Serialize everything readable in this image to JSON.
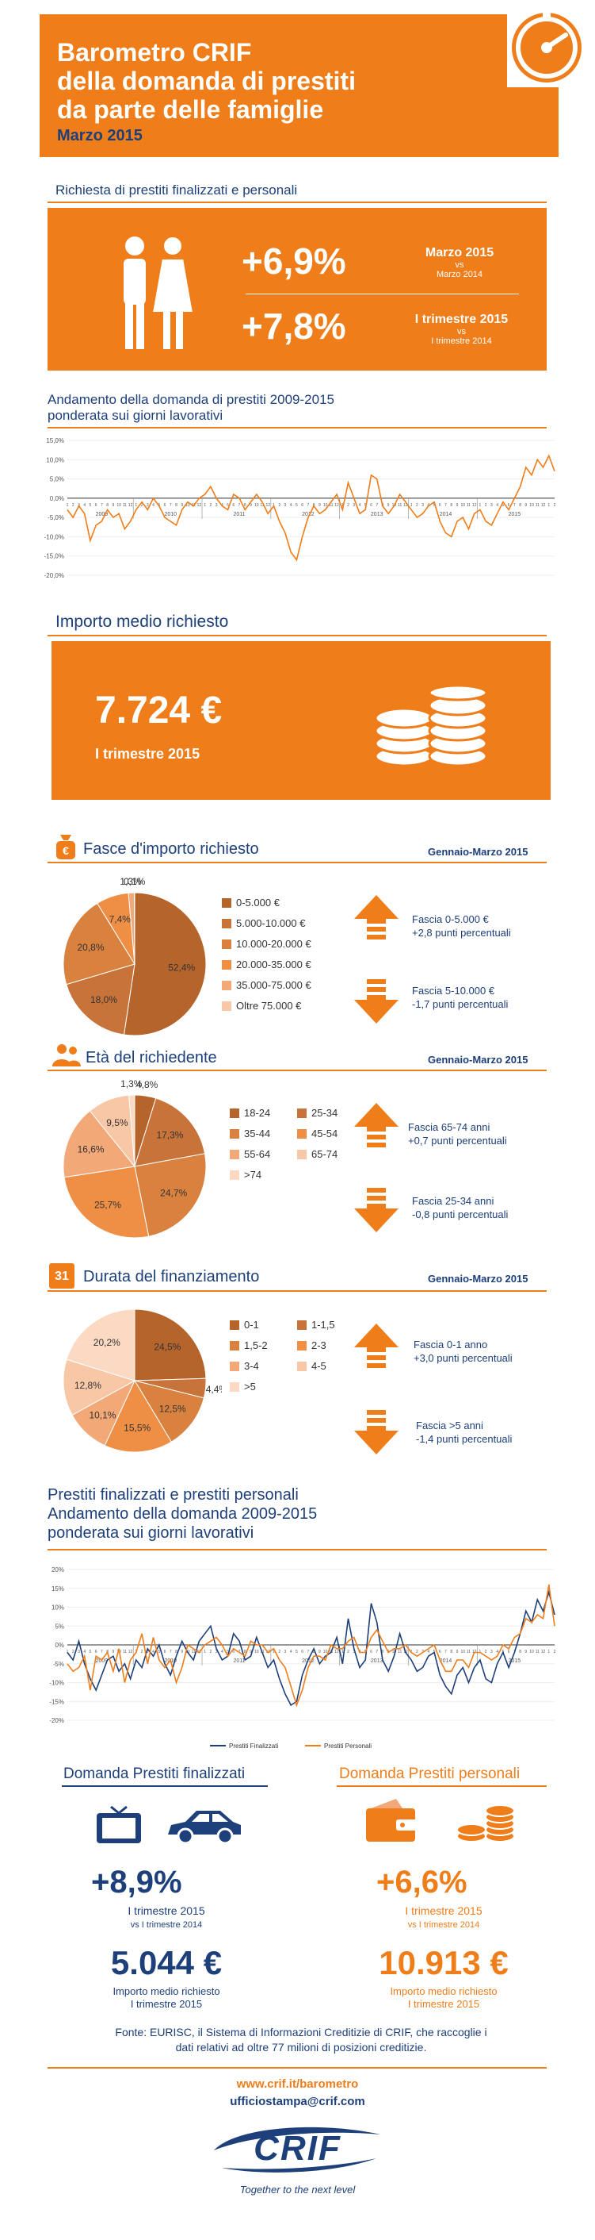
{
  "header": {
    "title_lines": [
      "Barometro CRIF",
      "della domanda di prestiti",
      "da parte delle famiglie"
    ],
    "date": "Marzo 2015"
  },
  "section_richiesta": {
    "title": "Richiesta di prestiti finalizzati e personali",
    "stat1_value": "+6,9%",
    "stat1_label": "Marzo 2015",
    "stat1_vs": "vs",
    "stat1_ref": "Marzo 2014",
    "stat2_value": "+7,8%",
    "stat2_label": "I trimestre 2015",
    "stat2_vs": "vs",
    "stat2_ref": "I trimestre 2014"
  },
  "section_andamento": {
    "title_line1": "Andamento della domanda di prestiti 2009-2015",
    "title_line2": "ponderata sui giorni lavorativi"
  },
  "section_importo": {
    "title": "Importo medio richiesto",
    "value": "7.724 €",
    "period": "I trimestre 2015"
  },
  "section_fasce": {
    "title": "Fasce d'importo richiesto",
    "period": "Gennaio-Marzo 2015",
    "note_up_line1": "Fascia 0-5.000 €",
    "note_up_line2": "+2,8 punti percentuali",
    "note_down_line1": "Fascia 5-10.000 €",
    "note_down_line2": "-1,7 punti percentuali"
  },
  "section_eta": {
    "title": "Età del richiedente",
    "period": "Gennaio-Marzo 2015",
    "note_up_line1": "Fascia 65-74 anni",
    "note_up_line2": "+0,7 punti percentuali",
    "note_down_line1": "Fascia 25-34 anni",
    "note_down_line2": "-0,8 punti percentuali"
  },
  "section_durata": {
    "title": "Durata del finanziamento",
    "calendar_number": "31",
    "period": "Gennaio-Marzo 2015",
    "note_up_line1": "Fascia 0-1 anno",
    "note_up_line2": "+3,0 punti percentuali",
    "note_down_line1": "Fascia >5 anni",
    "note_down_line2": "-1,4 punti percentuali"
  },
  "section_finalizzati": {
    "title_line1": "Prestiti finalizzati e prestiti personali",
    "title_line2": "Andamento della domanda 2009-2015",
    "title_line3": "ponderata sui giorni lavorativi"
  },
  "bottom": {
    "left_title": "Domanda Prestiti finalizzati",
    "left_value": "+8,9%",
    "left_period": "I trimestre 2015",
    "left_vs": "vs I trimestre 2014",
    "left_amount": "5.044 €",
    "left_amount_label1": "Importo medio richiesto",
    "left_amount_label2": "I trimestre 2015",
    "right_title": "Domanda Prestiti personali",
    "right_value": "+6,6%",
    "right_period": "I trimestre 2015",
    "right_vs": "vs I trimestre 2014",
    "right_amount": "10.913 €",
    "right_amount_label1": "Importo medio richiesto",
    "right_amount_label2": "I trimestre 2015"
  },
  "footer": {
    "source_line1": "Fonte: EURISC, il Sistema di Informazioni Creditizie di CRIF, che raccoglie i",
    "source_line2": "dati relativi ad oltre 77 milioni di posizioni creditizie.",
    "url": "www.crif.it/barometro",
    "email": "ufficiostampa@crif.com",
    "logo_text": "CRIF",
    "tagline": "Together to the next level"
  },
  "colors": {
    "orange": "#ef7d1a",
    "navy": "#1d3f7a",
    "pie": [
      "#b5652b",
      "#c8733a",
      "#d9823f",
      "#ee8f45",
      "#f3a877",
      "#f8c7a6",
      "#fbd9c2",
      "#f6b48a"
    ]
  },
  "chart_data": [
    {
      "type": "line",
      "title": "Andamento della domanda di prestiti 2009-2015",
      "subtitle": "ponderata sui giorni lavorativi",
      "ylim": [
        -20,
        15
      ],
      "yticks": [
        "15,0%",
        "10,0%",
        "5,0%",
        "0,0%",
        "-5,0%",
        "-10,0%",
        "-15,0%",
        "-20,0%"
      ],
      "year_labels": [
        "2009",
        "2010",
        "2011",
        "2012",
        "2013",
        "2014",
        "2015"
      ],
      "x_month_labels": [
        "1",
        "2",
        "3",
        "4",
        "5",
        "6",
        "7",
        "8",
        "9",
        "10",
        "11",
        "12"
      ],
      "series": [
        {
          "values": [
            -3,
            -5,
            -2,
            -4,
            -11,
            -7,
            -6,
            -3,
            -5,
            -4,
            -8,
            -6,
            -3,
            -1,
            -3,
            0,
            -2,
            -5,
            -6,
            -7,
            -3,
            -1,
            -2,
            0,
            1,
            3,
            0,
            -2,
            -3,
            1,
            0,
            -3,
            -1,
            1,
            -1,
            -4,
            -2,
            -6,
            -9,
            -14,
            -16,
            -10,
            -5,
            -2,
            -4,
            -3,
            -1,
            1,
            -3,
            4,
            0,
            -4,
            -3,
            6,
            5,
            -2,
            -4,
            -2,
            1,
            -1,
            -3,
            -5,
            -4,
            -2,
            -1,
            -6,
            -9,
            -10,
            -6,
            -5,
            -8,
            -4,
            -3,
            -6,
            -7,
            -4,
            -1,
            -3,
            0,
            3,
            8,
            6,
            10,
            8,
            11,
            7
          ]
        }
      ]
    },
    {
      "type": "pie",
      "title": "Fasce d'importo richiesto",
      "categories": [
        "0-5.000 €",
        "5.000-10.000 €",
        "10.000-20.000 €",
        "20.000-35.000 €",
        "35.000-75.000 €",
        "Oltre 75.000 €"
      ],
      "values": [
        52.4,
        18.0,
        20.8,
        7.4,
        1.3,
        0.1
      ],
      "labels": [
        "52,4%",
        "18,0%",
        "20,8%",
        "7,4%",
        "1,3%",
        "0,1%"
      ]
    },
    {
      "type": "pie",
      "title": "Età del richiedente",
      "categories": [
        "18-24",
        "25-34",
        "35-44",
        "45-54",
        "55-64",
        "65-74",
        ">74"
      ],
      "values": [
        4.8,
        17.3,
        24.7,
        25.7,
        16.6,
        9.5,
        1.3
      ],
      "labels": [
        "4,8%",
        "17,3%",
        "24,7%",
        "25,7%",
        "16,6%",
        "9,5%",
        "1,3%"
      ]
    },
    {
      "type": "pie",
      "title": "Durata del finanziamento",
      "categories": [
        "0-1",
        "1-1,5",
        "1,5-2",
        "2-3",
        "3-4",
        "4-5",
        ">5"
      ],
      "values": [
        24.5,
        4.4,
        12.5,
        15.5,
        10.1,
        12.8,
        20.2
      ],
      "labels": [
        "24,5%",
        "4,4%",
        "12,5%",
        "15,5%",
        "10,1%",
        "12,8%",
        "20,2%"
      ]
    },
    {
      "type": "line",
      "title": "Prestiti finalizzati e prestiti personali",
      "subtitle": "Andamento della domanda 2009-2015 ponderata sui giorni lavorativi",
      "ylim": [
        -20,
        20
      ],
      "yticks": [
        "20%",
        "15%",
        "10%",
        "5%",
        "0%",
        "-5%",
        "-10%",
        "-15%",
        "-20%"
      ],
      "year_labels": [
        "2009",
        "2010",
        "2011",
        "2012",
        "2013",
        "2014",
        "2015"
      ],
      "x_month_labels": [
        "1",
        "2",
        "3",
        "4",
        "5",
        "6",
        "7",
        "8",
        "9",
        "10",
        "11",
        "12"
      ],
      "legend": "bottom",
      "series": [
        {
          "name": "Prestiti Finalizzati",
          "values": [
            -2,
            -4,
            1,
            -5,
            -9,
            -12,
            -8,
            -4,
            -3,
            -7,
            -5,
            -9,
            -4,
            -6,
            -1,
            -3,
            0,
            -5,
            -8,
            -3,
            1,
            -2,
            -4,
            1,
            3,
            5,
            -1,
            -4,
            -3,
            3,
            1,
            -4,
            -3,
            2,
            -2,
            -6,
            -4,
            -9,
            -13,
            -16,
            -15,
            -8,
            -4,
            -1,
            -5,
            -3,
            -2,
            2,
            -5,
            7,
            -1,
            -6,
            -4,
            11,
            6,
            -4,
            -7,
            -3,
            3,
            -2,
            -4,
            -7,
            -6,
            -3,
            -2,
            -8,
            -11,
            -13,
            -8,
            -6,
            -10,
            -6,
            -4,
            -9,
            -10,
            -5,
            -2,
            -6,
            -2,
            3,
            9,
            6,
            12,
            9,
            14,
            8
          ]
        },
        {
          "name": "Prestiti Personali",
          "values": [
            -5,
            -7,
            -6,
            -3,
            -12,
            -3,
            -4,
            -2,
            -7,
            -1,
            -10,
            -4,
            -2,
            3,
            -5,
            2,
            -4,
            -6,
            -4,
            -10,
            -6,
            0,
            -1,
            -2,
            0,
            1,
            2,
            0,
            -3,
            -1,
            -2,
            -3,
            1,
            0,
            0,
            -2,
            -1,
            -4,
            -6,
            -11,
            -16,
            -12,
            -6,
            -3,
            -3,
            -4,
            0,
            -1,
            -1,
            1,
            2,
            -2,
            -2,
            2,
            4,
            1,
            -2,
            -1,
            -1,
            0,
            -2,
            -3,
            -2,
            -1,
            0,
            -4,
            -7,
            -7,
            -4,
            -4,
            -6,
            -2,
            -2,
            -3,
            -4,
            -3,
            0,
            -1,
            2,
            3,
            7,
            6,
            8,
            7,
            16,
            5
          ]
        }
      ]
    }
  ]
}
